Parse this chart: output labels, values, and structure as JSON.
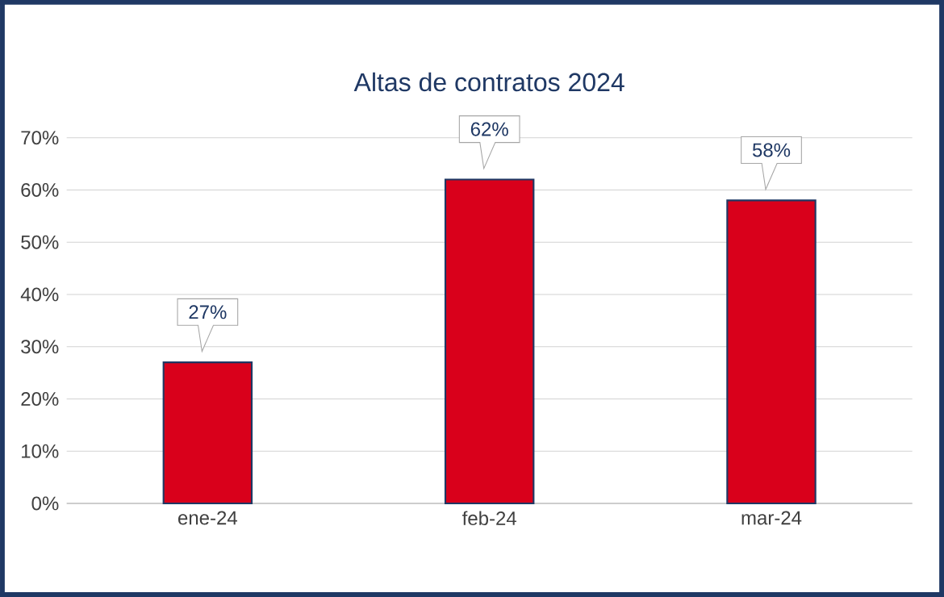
{
  "chart_data": {
    "type": "bar",
    "title": "Altas de contratos 2024",
    "categories": [
      "ene-24",
      "feb-24",
      "mar-24"
    ],
    "values": [
      27,
      62,
      58
    ],
    "value_labels": [
      "27%",
      "62%",
      "58%"
    ],
    "color": "#d9001b",
    "ylim": [
      0,
      70
    ],
    "yticks": [
      {
        "value": 0,
        "label": "0%"
      },
      {
        "value": 10,
        "label": "10%"
      },
      {
        "value": 20,
        "label": "20%"
      },
      {
        "value": 30,
        "label": "30%"
      },
      {
        "value": 40,
        "label": "40%"
      },
      {
        "value": 50,
        "label": "50%"
      },
      {
        "value": 60,
        "label": "60%"
      },
      {
        "value": 70,
        "label": "70%"
      }
    ],
    "grid": "y"
  }
}
